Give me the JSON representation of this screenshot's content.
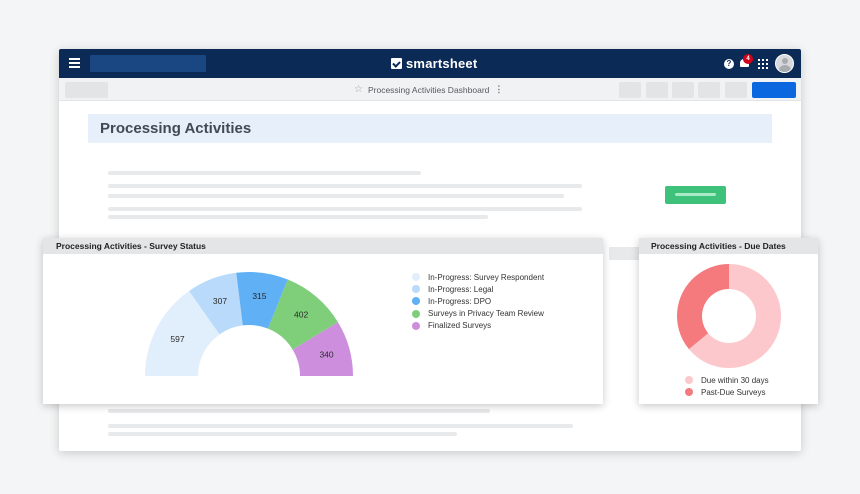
{
  "app": {
    "brand": "smartsheet",
    "notification_count": "4"
  },
  "sheet": {
    "title": "Processing Activities Dashboard"
  },
  "dashboard": {
    "title": "Processing Activities"
  },
  "survey_widget": {
    "title": "Processing Activities - Survey Status",
    "chart_data": {
      "type": "pie",
      "subtype": "half-donut",
      "series": [
        {
          "name": "In-Progress: Survey Respondent",
          "value": 597,
          "color": "#e1eefc"
        },
        {
          "name": "In-Progress: Legal",
          "value": 307,
          "color": "#b9dafa"
        },
        {
          "name": "In-Progress: DPO",
          "value": 315,
          "color": "#5fb0f5"
        },
        {
          "name": "Surveys in Privacy Team Review",
          "value": 402,
          "color": "#7fcf7a"
        },
        {
          "name": "Finalized Surveys",
          "value": 340,
          "color": "#cd8fdd"
        }
      ],
      "legend_position": "right"
    }
  },
  "due_widget": {
    "title": "Processing Activities - Due Dates",
    "chart_data": {
      "type": "pie",
      "subtype": "donut",
      "series": [
        {
          "name": "Due within 30 days",
          "value": 64,
          "color": "#fcc8cc"
        },
        {
          "name": "Past-Due Surveys",
          "value": 36,
          "color": "#f47a7e"
        }
      ],
      "legend_position": "bottom"
    }
  }
}
